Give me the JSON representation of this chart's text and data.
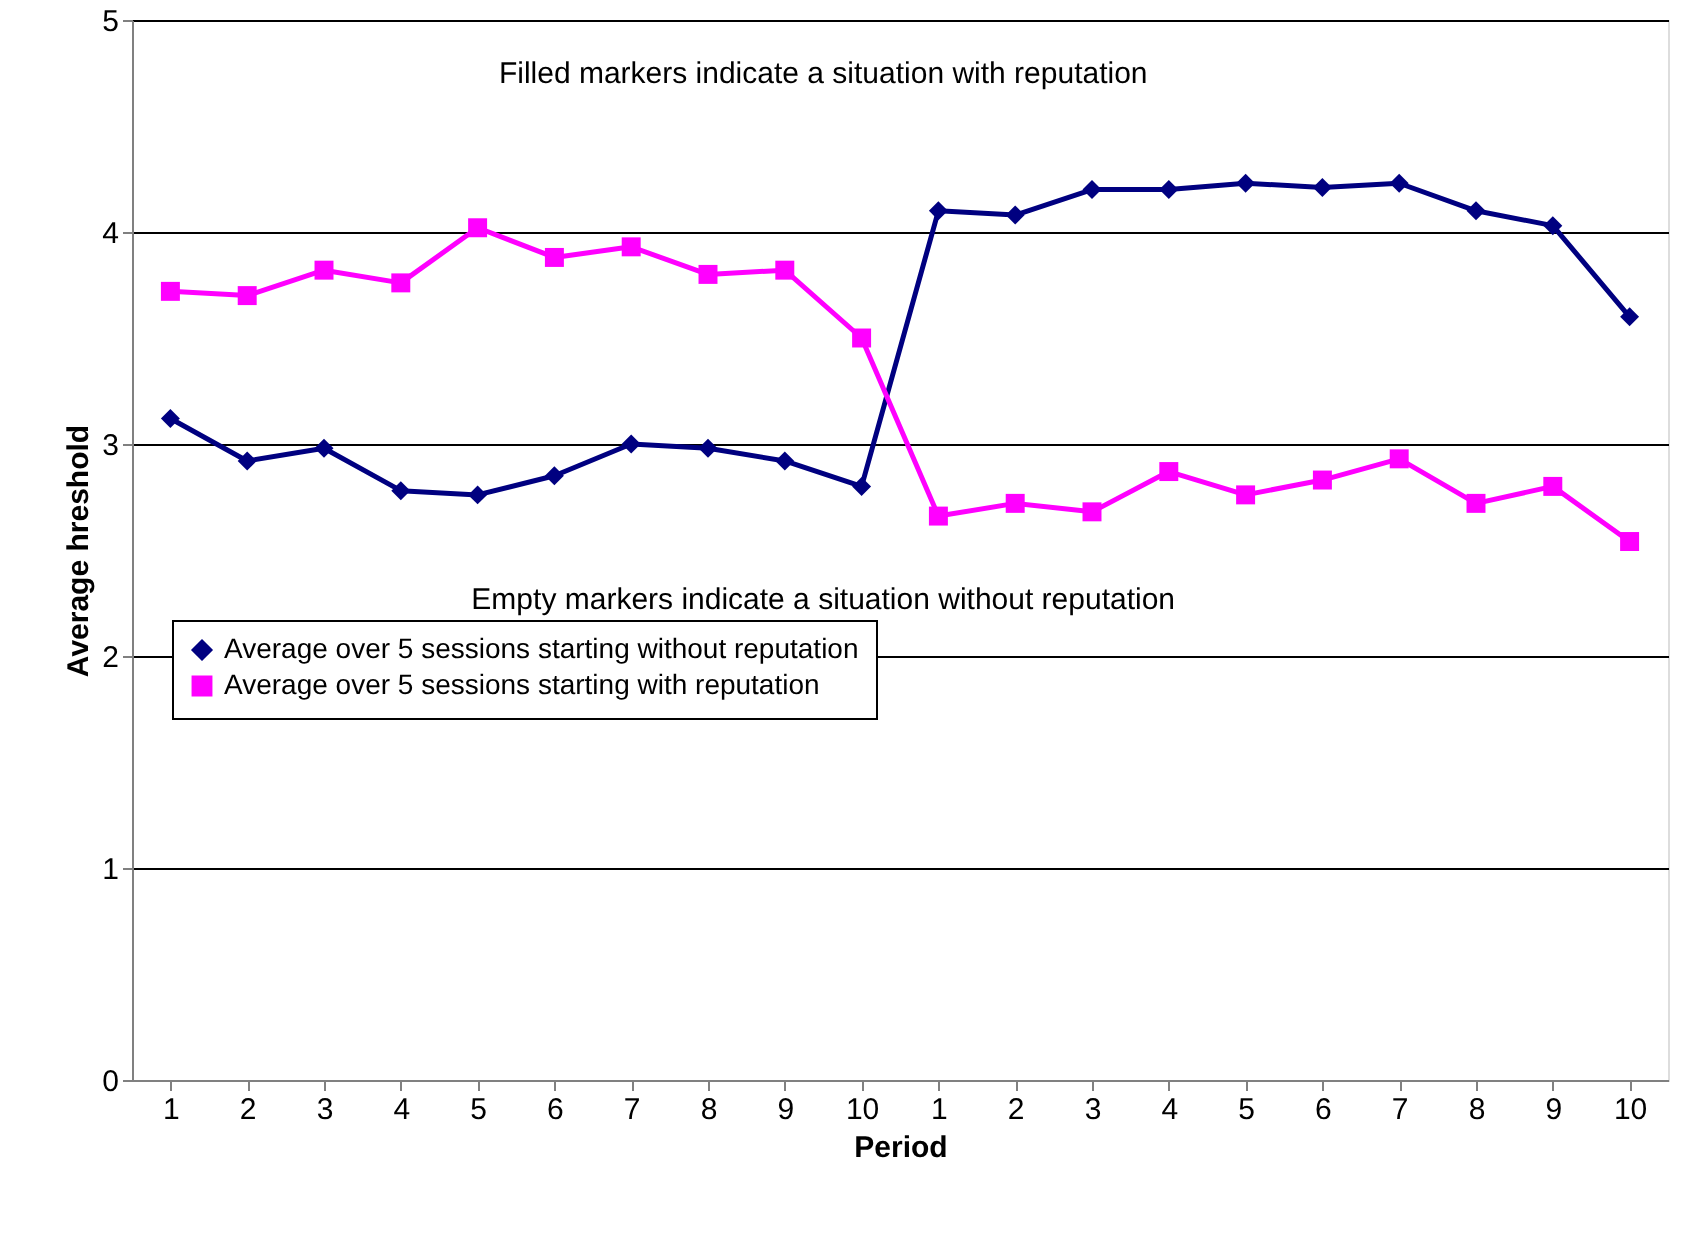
{
  "chart_data": {
    "type": "line",
    "xlabel": "Period",
    "ylabel": "Average hreshold",
    "categories": [
      "1",
      "2",
      "3",
      "4",
      "5",
      "6",
      "7",
      "8",
      "9",
      "10",
      "1",
      "2",
      "3",
      "4",
      "5",
      "6",
      "7",
      "8",
      "9",
      "10"
    ],
    "series": [
      {
        "name": "Average over 5 sessions starting without reputation",
        "color": "#000080",
        "marker": "diamond",
        "values": [
          3.12,
          2.92,
          2.98,
          2.78,
          2.76,
          2.85,
          3.0,
          2.98,
          2.92,
          2.8,
          4.1,
          4.08,
          4.2,
          4.2,
          4.23,
          4.21,
          4.23,
          4.1,
          4.03,
          3.6
        ]
      },
      {
        "name": "Average over 5 sessions starting with reputation",
        "color": "#ff00ff",
        "marker": "square",
        "values": [
          3.72,
          3.7,
          3.82,
          3.76,
          4.02,
          3.88,
          3.93,
          3.8,
          3.82,
          3.5,
          2.66,
          2.72,
          2.68,
          2.87,
          2.76,
          2.83,
          2.93,
          2.72,
          2.8,
          2.54
        ]
      }
    ],
    "annotations": [
      "Filled markers indicate a situation with reputation",
      "Empty markers indicate a situation without reputation"
    ],
    "ylim": [
      0,
      5
    ],
    "yticks": [
      0,
      1,
      2,
      3,
      4,
      5
    ],
    "grid": "y",
    "legend": "left",
    "line_style": "solid"
  }
}
